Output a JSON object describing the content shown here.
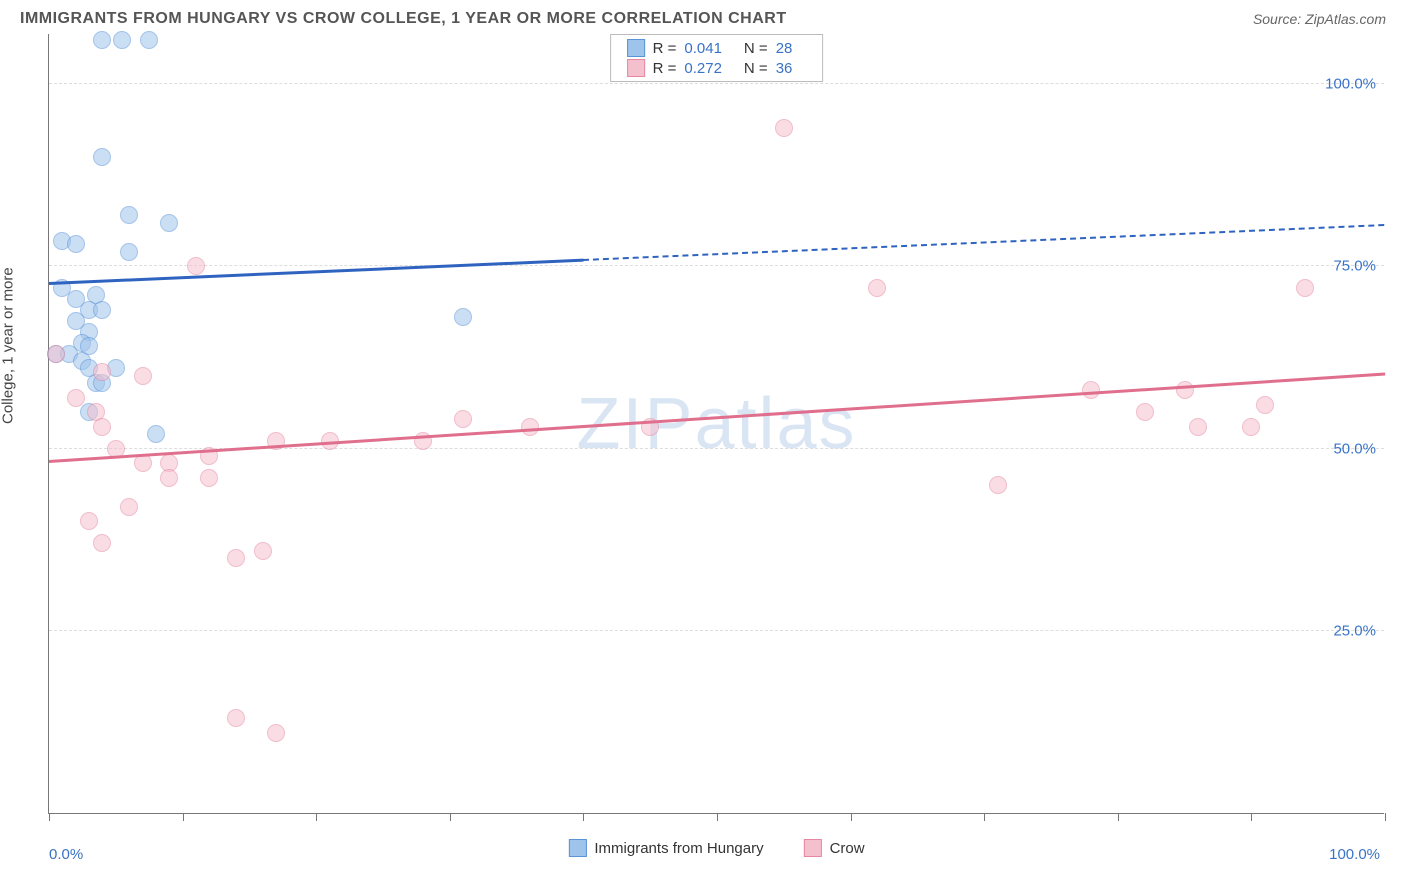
{
  "title": "IMMIGRANTS FROM HUNGARY VS CROW COLLEGE, 1 YEAR OR MORE CORRELATION CHART",
  "source": "Source: ZipAtlas.com",
  "watermark": "ZIPatlas",
  "ylabel": "College, 1 year or more",
  "chart": {
    "type": "scatter",
    "background_color": "#ffffff",
    "grid_color": "#dddddd",
    "axis_color": "#777777",
    "xlim": [
      0,
      100
    ],
    "ylim": [
      0,
      107
    ],
    "xticks": [
      0,
      10,
      20,
      30,
      40,
      50,
      60,
      70,
      80,
      90,
      100
    ],
    "yticks": [
      25,
      50,
      75,
      100
    ],
    "xlabel_min": "0.0%",
    "xlabel_max": "100.0%",
    "ytick_labels": [
      "25.0%",
      "50.0%",
      "75.0%",
      "100.0%"
    ],
    "marker_radius": 9,
    "marker_opacity": 0.55,
    "label_fontsize": 15,
    "label_color": "#3973c7",
    "title_fontsize": 16,
    "series": [
      {
        "name": "Immigrants from Hungary",
        "fill": "#9fc4ec",
        "stroke": "#5a93d6",
        "line_color": "#2f63c0",
        "R": "0.041",
        "N": "28",
        "points": [
          [
            4,
            106
          ],
          [
            5.5,
            106
          ],
          [
            7.5,
            106
          ],
          [
            4,
            90
          ],
          [
            6,
            82
          ],
          [
            9,
            81
          ],
          [
            1,
            78.5
          ],
          [
            2,
            78
          ],
          [
            6,
            77
          ],
          [
            1,
            72
          ],
          [
            2,
            70.5
          ],
          [
            3.5,
            71
          ],
          [
            3,
            69
          ],
          [
            4,
            69
          ],
          [
            2,
            67.5
          ],
          [
            3,
            66
          ],
          [
            2.5,
            64.5
          ],
          [
            3,
            64
          ],
          [
            0.5,
            63
          ],
          [
            1.5,
            63
          ],
          [
            2.5,
            62
          ],
          [
            3,
            61
          ],
          [
            5,
            61
          ],
          [
            3.5,
            59
          ],
          [
            4,
            59
          ],
          [
            3,
            55
          ],
          [
            8,
            52
          ],
          [
            31,
            68
          ]
        ],
        "trend": {
          "x1": 0,
          "y1": 72.5,
          "x2": 100,
          "y2": 80.5,
          "solid_until_x": 40,
          "width_solid": 3,
          "width_dash": 2,
          "dash": "8,7"
        }
      },
      {
        "name": "Crow",
        "fill": "#f5c0ce",
        "stroke": "#e688a1",
        "line_color": "#e06f8d",
        "R": "0.272",
        "N": "36",
        "points": [
          [
            0.5,
            63
          ],
          [
            11,
            75
          ],
          [
            55,
            94
          ],
          [
            4,
            60.5
          ],
          [
            7,
            60
          ],
          [
            2,
            57
          ],
          [
            3.5,
            55
          ],
          [
            4,
            53
          ],
          [
            31,
            54
          ],
          [
            36,
            53
          ],
          [
            45,
            53
          ],
          [
            5,
            50
          ],
          [
            17,
            51
          ],
          [
            21,
            51
          ],
          [
            28,
            51
          ],
          [
            7,
            48
          ],
          [
            9,
            48
          ],
          [
            12,
            49
          ],
          [
            62,
            72
          ],
          [
            78,
            58
          ],
          [
            85,
            58
          ],
          [
            82,
            55
          ],
          [
            91,
            56
          ],
          [
            94,
            72
          ],
          [
            86,
            53
          ],
          [
            90,
            53
          ],
          [
            71,
            45
          ],
          [
            6,
            42
          ],
          [
            9,
            46
          ],
          [
            12,
            46
          ],
          [
            3,
            40
          ],
          [
            4,
            37
          ],
          [
            14,
            35
          ],
          [
            16,
            36
          ],
          [
            14,
            13
          ],
          [
            17,
            11
          ]
        ],
        "trend": {
          "x1": 0,
          "y1": 48,
          "x2": 100,
          "y2": 60,
          "solid_until_x": 100,
          "width_solid": 3,
          "width_dash": 2,
          "dash": ""
        }
      }
    ]
  }
}
